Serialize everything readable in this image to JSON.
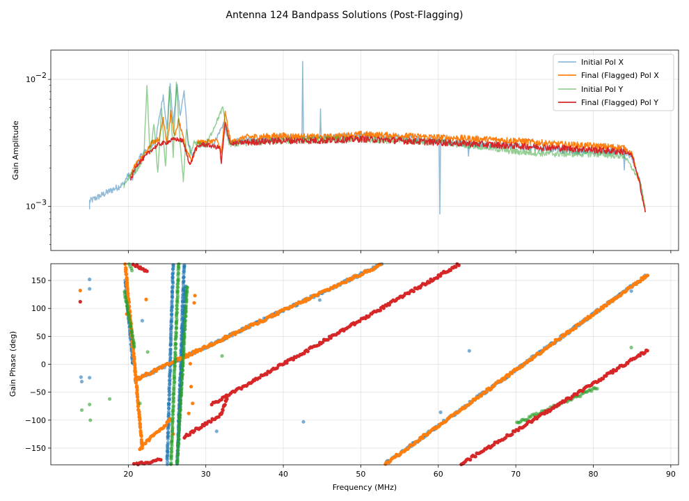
{
  "chart_data": {
    "title": "Antenna 124 Bandpass Solutions (Post-Flagging)",
    "colors": {
      "initial_x": "#1f77b4",
      "final_x": "#ff7f0e",
      "initial_y": "#2ca02c",
      "final_y": "#d62728"
    },
    "x_axis": {
      "label": "Frequency (MHz)",
      "xlim": [
        10,
        91
      ],
      "ticks": [
        20,
        30,
        40,
        50,
        60,
        70,
        80,
        90
      ],
      "tick_labels": [
        "20",
        "30",
        "40",
        "50",
        "60",
        "70",
        "80",
        "90"
      ]
    },
    "panels": [
      {
        "type": "line",
        "ylabel": "Gain Amplitude",
        "yscale": "log",
        "ylim": [
          0.00045,
          0.017
        ],
        "yticks": [
          0.001,
          0.01
        ],
        "ytick_base": "10",
        "ytick_exponents": [
          "−3",
          "−2"
        ],
        "grid": true,
        "legend_loc": "upper right",
        "series": [
          {
            "key": "initial_x",
            "name": "Initial Pol X",
            "alpha": 0.5,
            "points": [
              [
                15,
                0.00095
              ],
              [
                15,
                0.0011
              ],
              [
                19.4,
                0.0015
              ],
              [
                20,
                0.0018
              ],
              [
                20.5,
                0.0016
              ],
              [
                21.5,
                0.0025
              ],
              [
                22.5,
                0.0028
              ],
              [
                23.5,
                0.0032
              ],
              [
                24,
                0.005
              ],
              [
                24.5,
                0.0075
              ],
              [
                25,
                0.004
              ],
              [
                25.4,
                0.009
              ],
              [
                25.8,
                0.0045
              ],
              [
                26.3,
                0.009
              ],
              [
                26.7,
                0.0052
              ],
              [
                27.2,
                0.0082
              ],
              [
                27.7,
                0.0032
              ],
              [
                28.3,
                0.0025
              ],
              [
                29,
                0.003
              ],
              [
                31,
                0.0031
              ],
              [
                32.3,
                0.0045
              ],
              [
                33,
                0.0032
              ],
              [
                40,
                0.0035
              ],
              [
                42.4,
                0.0035
              ],
              [
                42.5,
                0.014
              ],
              [
                42.6,
                0.0035
              ],
              [
                44.7,
                0.0035
              ],
              [
                44.8,
                0.0057
              ],
              [
                44.9,
                0.0035
              ],
              [
                50,
                0.0036
              ],
              [
                55,
                0.0035
              ],
              [
                60.1,
                0.0033
              ],
              [
                60.2,
                0.0009
              ],
              [
                60.3,
                0.0033
              ],
              [
                63.8,
                0.0031
              ],
              [
                63.9,
                0.0025
              ],
              [
                64,
                0.0031
              ],
              [
                70,
                0.003
              ],
              [
                75,
                0.0028
              ],
              [
                80,
                0.0027
              ],
              [
                83.9,
                0.0027
              ],
              [
                84,
                0.002
              ],
              [
                84.1,
                0.0027
              ],
              [
                85,
                0.0024
              ],
              [
                86,
                0.0016
              ],
              [
                86.7,
                0.0009
              ]
            ]
          },
          {
            "key": "final_x",
            "name": "Final (Flagged) Pol X",
            "alpha": 1,
            "points": [
              [
                20.2,
                0.0017
              ],
              [
                21,
                0.0022
              ],
              [
                22,
                0.0025
              ],
              [
                23,
                0.0032
              ],
              [
                24,
                0.0034
              ],
              [
                24.5,
                0.005
              ],
              [
                25,
                0.0031
              ],
              [
                25.5,
                0.0055
              ],
              [
                26,
                0.0035
              ],
              [
                26.5,
                0.0048
              ],
              [
                27,
                0.0036
              ],
              [
                27.5,
                0.0028
              ],
              [
                28.2,
                0.0023
              ],
              [
                29,
                0.0032
              ],
              [
                31.5,
                0.0033
              ],
              [
                32,
                0.0026
              ],
              [
                32.5,
                0.0055
              ],
              [
                33.2,
                0.0032
              ],
              [
                35,
                0.0035
              ],
              [
                40,
                0.0036
              ],
              [
                45,
                0.0035
              ],
              [
                50,
                0.0037
              ],
              [
                55,
                0.0036
              ],
              [
                60,
                0.0035
              ],
              [
                65,
                0.0034
              ],
              [
                70,
                0.0033
              ],
              [
                75,
                0.0031
              ],
              [
                80,
                0.003
              ],
              [
                84,
                0.0029
              ],
              [
                85,
                0.0026
              ],
              [
                86,
                0.0015
              ],
              [
                86.7,
                0.0009
              ]
            ]
          },
          {
            "key": "initial_y",
            "name": "Initial Pol Y",
            "alpha": 0.5,
            "points": [
              [
                19.4,
                0.0014
              ],
              [
                19.8,
                0.0016
              ],
              [
                20.3,
                0.0018
              ],
              [
                21,
                0.0019
              ],
              [
                22,
                0.0024
              ],
              [
                22.4,
                0.009
              ],
              [
                22.8,
                0.0025
              ],
              [
                23.3,
                0.0045
              ],
              [
                23.8,
                0.0018
              ],
              [
                24.3,
                0.006
              ],
              [
                24.8,
                0.002
              ],
              [
                25.3,
                0.0085
              ],
              [
                25.8,
                0.0025
              ],
              [
                26.2,
                0.0095
              ],
              [
                26.7,
                0.003
              ],
              [
                27.1,
                0.0016
              ],
              [
                27.5,
                0.004
              ],
              [
                28,
                0.0025
              ],
              [
                28.5,
                0.0032
              ],
              [
                30,
                0.003
              ],
              [
                32.2,
                0.006
              ],
              [
                33,
                0.0031
              ],
              [
                40,
                0.0033
              ],
              [
                50,
                0.0034
              ],
              [
                60,
                0.0032
              ],
              [
                65,
                0.003
              ],
              [
                70,
                0.0027
              ],
              [
                75,
                0.0026
              ],
              [
                80,
                0.0026
              ],
              [
                84,
                0.0025
              ],
              [
                86,
                0.0016
              ],
              [
                86.7,
                0.001
              ]
            ]
          },
          {
            "key": "final_y",
            "name": "Final (Flagged) Pol Y",
            "alpha": 1,
            "points": [
              [
                20.3,
                0.0016
              ],
              [
                21,
                0.0021
              ],
              [
                22,
                0.0024
              ],
              [
                23,
                0.0028
              ],
              [
                24,
                0.0031
              ],
              [
                25,
                0.0032
              ],
              [
                26,
                0.0034
              ],
              [
                27,
                0.0033
              ],
              [
                28,
                0.0021
              ],
              [
                28.6,
                0.0028
              ],
              [
                29.5,
                0.0031
              ],
              [
                31.8,
                0.0029
              ],
              [
                32,
                0.0022
              ],
              [
                32.5,
                0.0045
              ],
              [
                33.2,
                0.0031
              ],
              [
                35,
                0.0032
              ],
              [
                40,
                0.0033
              ],
              [
                45,
                0.0033
              ],
              [
                50,
                0.0034
              ],
              [
                55,
                0.0033
              ],
              [
                60,
                0.0032
              ],
              [
                65,
                0.0031
              ],
              [
                70,
                0.003
              ],
              [
                75,
                0.0029
              ],
              [
                80,
                0.0028
              ],
              [
                84,
                0.0027
              ],
              [
                85,
                0.0025
              ],
              [
                86,
                0.0015
              ],
              [
                86.7,
                0.0009
              ]
            ]
          }
        ]
      },
      {
        "type": "scatter",
        "ylabel": "Gain Phase (deg)",
        "ylim": [
          -180,
          180
        ],
        "yticks": [
          -150,
          -100,
          -50,
          0,
          50,
          100,
          150
        ],
        "ytick_labels": [
          "−150",
          "−100",
          "−50",
          "0",
          "50",
          "100",
          "150"
        ],
        "grid": true,
        "series": [
          {
            "key": "initial_x",
            "name": "Initial Pol X",
            "alpha": 0.6,
            "segments": [
              [
                20.9,
                52.9,
                -28,
                180
              ],
              [
                53.0,
                87.0,
                -180,
                160
              ],
              [
                25,
                25.8,
                -180,
                180
              ],
              [
                26.3,
                27.4,
                -180,
                140
              ],
              [
                19.6,
                20.6,
                150,
                0
              ],
              [
                26.4,
                27.2,
                -150,
                180
              ]
            ],
            "points": [
              [
                13.9,
                -23
              ],
              [
                14,
                -31
              ],
              [
                15,
                -24
              ],
              [
                15,
                135
              ],
              [
                15,
                152
              ],
              [
                20,
                100
              ],
              [
                21.8,
                78
              ],
              [
                44.7,
                115
              ],
              [
                42.6,
                -103
              ],
              [
                60.3,
                -86
              ],
              [
                64,
                24
              ],
              [
                84.9,
                131
              ],
              [
                31.4,
                -120
              ]
            ]
          },
          {
            "key": "final_x",
            "name": "Final (Flagged) Pol X",
            "alpha": 1,
            "segments": [
              [
                20.9,
                52.9,
                -28,
                180
              ],
              [
                53.0,
                87.0,
                -180,
                160
              ],
              [
                19.6,
                21.8,
                180,
                -150
              ],
              [
                21.5,
                25.4,
                -150,
                -100
              ]
            ],
            "points": [
              [
                13.8,
                132
              ],
              [
                22.3,
                116
              ],
              [
                28.5,
                110
              ],
              [
                28.6,
                123
              ],
              [
                28.1,
                -40
              ],
              [
                28.3,
                -70
              ],
              [
                27.8,
                -88
              ],
              [
                28,
                1
              ],
              [
                19.8,
                90
              ],
              [
                25.8,
                -125
              ]
            ]
          },
          {
            "key": "initial_y",
            "name": "Initial Pol Y",
            "alpha": 0.6,
            "segments": [
              [
                19.5,
                20.8,
                130,
                30
              ],
              [
                25.5,
                26.5,
                -180,
                180
              ],
              [
                26.3,
                27.6,
                -180,
                140
              ],
              [
                70.1,
                80.5,
                -105,
                -42
              ],
              [
                20,
                20.5,
                180,
                170
              ]
            ],
            "points": [
              [
                14,
                -82
              ],
              [
                15,
                -72
              ],
              [
                15.1,
                -100
              ],
              [
                17.6,
                -62
              ],
              [
                22.5,
                22
              ],
              [
                21.5,
                -70
              ],
              [
                32.1,
                15
              ],
              [
                84.9,
                30
              ],
              [
                60.3,
                160
              ]
            ]
          },
          {
            "key": "final_y",
            "name": "Final (Flagged) Pol Y",
            "alpha": 1,
            "segments": [
              [
                30.8,
                62.8,
                -72,
                180
              ],
              [
                62.8,
                87.0,
                -180,
                25
              ],
              [
                27.2,
                32.0,
                -130,
                -90
              ],
              [
                20.7,
                24.2,
                -180,
                -170
              ],
              [
                20.6,
                22.4,
                180,
                165
              ],
              [
                32.0,
                32.7,
                -90,
                -60
              ]
            ],
            "points": [
              [
                13.8,
                112
              ]
            ]
          }
        ]
      }
    ]
  }
}
